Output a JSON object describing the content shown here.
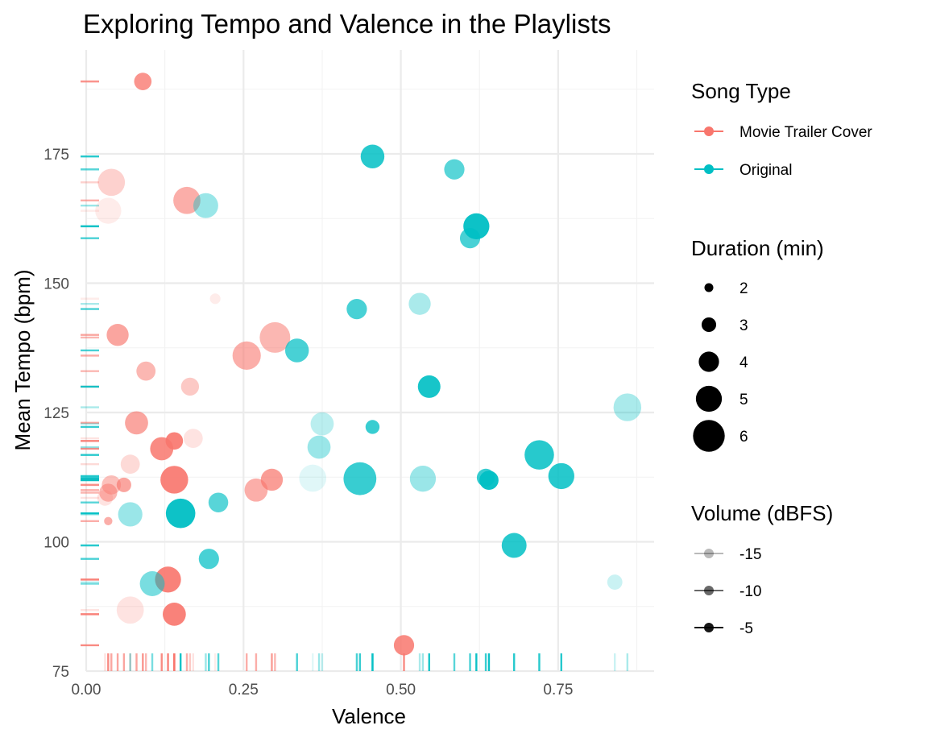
{
  "chart_data": {
    "type": "scatter",
    "title": "Exploring Tempo and Valence in the Playlists",
    "xlabel": "Valence",
    "ylabel": "Mean Tempo (bpm)",
    "xlim": [
      0,
      0.9
    ],
    "ylim": [
      75,
      192
    ],
    "x_ticks": [
      0,
      0.25,
      0.5,
      0.75
    ],
    "x_tick_labels": [
      "0.00",
      "0.25",
      "0.50",
      "0.75"
    ],
    "y_ticks": [
      75,
      100,
      125,
      150,
      175
    ],
    "y_tick_labels": [
      "75",
      "100",
      "125",
      "150",
      "175"
    ],
    "grid": true,
    "rug": true,
    "colors": {
      "Movie Trailer Cover": "#f8766d",
      "Original": "#00bfc4"
    },
    "legends": {
      "color": {
        "title": "Song Type",
        "entries": [
          "Movie Trailer Cover",
          "Original"
        ]
      },
      "size": {
        "title": "Duration (min)",
        "entries": [
          {
            "label": "2",
            "value": 2
          },
          {
            "label": "3",
            "value": 3
          },
          {
            "label": "4",
            "value": 4
          },
          {
            "label": "5",
            "value": 5
          },
          {
            "label": "6",
            "value": 6
          }
        ]
      },
      "alpha": {
        "title": "Volume (dBFS)",
        "entries": [
          {
            "label": "-15",
            "value": -15
          },
          {
            "label": "-10",
            "value": -10
          },
          {
            "label": "-5",
            "value": -5
          }
        ]
      }
    },
    "series": [
      {
        "name": "Movie Trailer Cover",
        "points": [
          {
            "valence": 0.09,
            "tempo": 189,
            "duration": 3.5,
            "volume": -7
          },
          {
            "valence": 0.04,
            "tempo": 169.5,
            "duration": 5.2,
            "volume": -14
          },
          {
            "valence": 0.035,
            "tempo": 164,
            "duration": 5.0,
            "volume": -17
          },
          {
            "valence": 0.16,
            "tempo": 166,
            "duration": 5.2,
            "volume": -10
          },
          {
            "valence": 0.205,
            "tempo": 147,
            "duration": 2.3,
            "volume": -17
          },
          {
            "valence": 0.05,
            "tempo": 140,
            "duration": 4.3,
            "volume": -9
          },
          {
            "valence": 0.3,
            "tempo": 139.5,
            "duration": 5.8,
            "volume": -11
          },
          {
            "valence": 0.255,
            "tempo": 136,
            "duration": 5.4,
            "volume": -10
          },
          {
            "valence": 0.095,
            "tempo": 133,
            "duration": 3.8,
            "volume": -11
          },
          {
            "valence": 0.165,
            "tempo": 130,
            "duration": 3.6,
            "volume": -13
          },
          {
            "valence": 0.08,
            "tempo": 123,
            "duration": 4.5,
            "volume": -9
          },
          {
            "valence": 0.17,
            "tempo": 120,
            "duration": 3.8,
            "volume": -16
          },
          {
            "valence": 0.14,
            "tempo": 119.5,
            "duration": 3.5,
            "volume": -5
          },
          {
            "valence": 0.12,
            "tempo": 118,
            "duration": 4.5,
            "volume": -6
          },
          {
            "valence": 0.07,
            "tempo": 115,
            "duration": 3.8,
            "volume": -15
          },
          {
            "valence": 0.14,
            "tempo": 112,
            "duration": 5.3,
            "volume": -5
          },
          {
            "valence": 0.295,
            "tempo": 112,
            "duration": 4.3,
            "volume": -8
          },
          {
            "valence": 0.04,
            "tempo": 111,
            "duration": 3.8,
            "volume": -12
          },
          {
            "valence": 0.06,
            "tempo": 111,
            "duration": 3.0,
            "volume": -9
          },
          {
            "valence": 0.035,
            "tempo": 109.5,
            "duration": 3.6,
            "volume": -11
          },
          {
            "valence": 0.03,
            "tempo": 108.5,
            "duration": 3.2,
            "volume": -16
          },
          {
            "valence": 0.27,
            "tempo": 110,
            "duration": 4.5,
            "volume": -10
          },
          {
            "valence": 0.035,
            "tempo": 104,
            "duration": 1.9,
            "volume": -10
          },
          {
            "valence": 0.13,
            "tempo": 92.7,
            "duration": 5.0,
            "volume": -5
          },
          {
            "valence": 0.07,
            "tempo": 86.8,
            "duration": 5.2,
            "volume": -16
          },
          {
            "valence": 0.14,
            "tempo": 86,
            "duration": 4.5,
            "volume": -5
          },
          {
            "valence": 0.505,
            "tempo": 80,
            "duration": 4.0,
            "volume": -6
          }
        ]
      },
      {
        "name": "Original",
        "points": [
          {
            "valence": 0.455,
            "tempo": 174.5,
            "duration": 4.6,
            "volume": -6
          },
          {
            "valence": 0.585,
            "tempo": 172,
            "duration": 4.0,
            "volume": -9
          },
          {
            "valence": 0.19,
            "tempo": 165,
            "duration": 4.8,
            "volume": -13
          },
          {
            "valence": 0.62,
            "tempo": 161,
            "duration": 5.0,
            "volume": -3
          },
          {
            "valence": 0.61,
            "tempo": 158.7,
            "duration": 4.0,
            "volume": -8
          },
          {
            "valence": 0.53,
            "tempo": 146,
            "duration": 4.3,
            "volume": -14
          },
          {
            "valence": 0.43,
            "tempo": 145,
            "duration": 4.0,
            "volume": -8
          },
          {
            "valence": 0.335,
            "tempo": 137,
            "duration": 4.6,
            "volume": -8
          },
          {
            "valence": 0.545,
            "tempo": 130,
            "duration": 4.4,
            "volume": -5
          },
          {
            "valence": 0.86,
            "tempo": 126,
            "duration": 5.3,
            "volume": -14
          },
          {
            "valence": 0.375,
            "tempo": 122.8,
            "duration": 4.5,
            "volume": -15
          },
          {
            "valence": 0.455,
            "tempo": 122.2,
            "duration": 2.9,
            "volume": -7
          },
          {
            "valence": 0.37,
            "tempo": 118.3,
            "duration": 4.5,
            "volume": -13
          },
          {
            "valence": 0.72,
            "tempo": 116.8,
            "duration": 5.6,
            "volume": -6
          },
          {
            "valence": 0.755,
            "tempo": 112.7,
            "duration": 5.0,
            "volume": -6
          },
          {
            "valence": 0.36,
            "tempo": 112.3,
            "duration": 5.2,
            "volume": -18
          },
          {
            "valence": 0.435,
            "tempo": 112.2,
            "duration": 6.2,
            "volume": -7
          },
          {
            "valence": 0.535,
            "tempo": 112.2,
            "duration": 5.0,
            "volume": -13
          },
          {
            "valence": 0.635,
            "tempo": 112.4,
            "duration": 3.6,
            "volume": -7
          },
          {
            "valence": 0.64,
            "tempo": 111.9,
            "duration": 3.8,
            "volume": -4
          },
          {
            "valence": 0.21,
            "tempo": 107.6,
            "duration": 3.9,
            "volume": -9
          },
          {
            "valence": 0.15,
            "tempo": 105.5,
            "duration": 5.6,
            "volume": -4
          },
          {
            "valence": 0.07,
            "tempo": 105.3,
            "duration": 4.7,
            "volume": -13
          },
          {
            "valence": 0.68,
            "tempo": 99.3,
            "duration": 4.8,
            "volume": -6
          },
          {
            "valence": 0.195,
            "tempo": 96.7,
            "duration": 4.0,
            "volume": -8
          },
          {
            "valence": 0.105,
            "tempo": 91.9,
            "duration": 4.8,
            "volume": -11
          },
          {
            "valence": 0.84,
            "tempo": 92.2,
            "duration": 3.1,
            "volume": -16
          }
        ]
      }
    ]
  }
}
